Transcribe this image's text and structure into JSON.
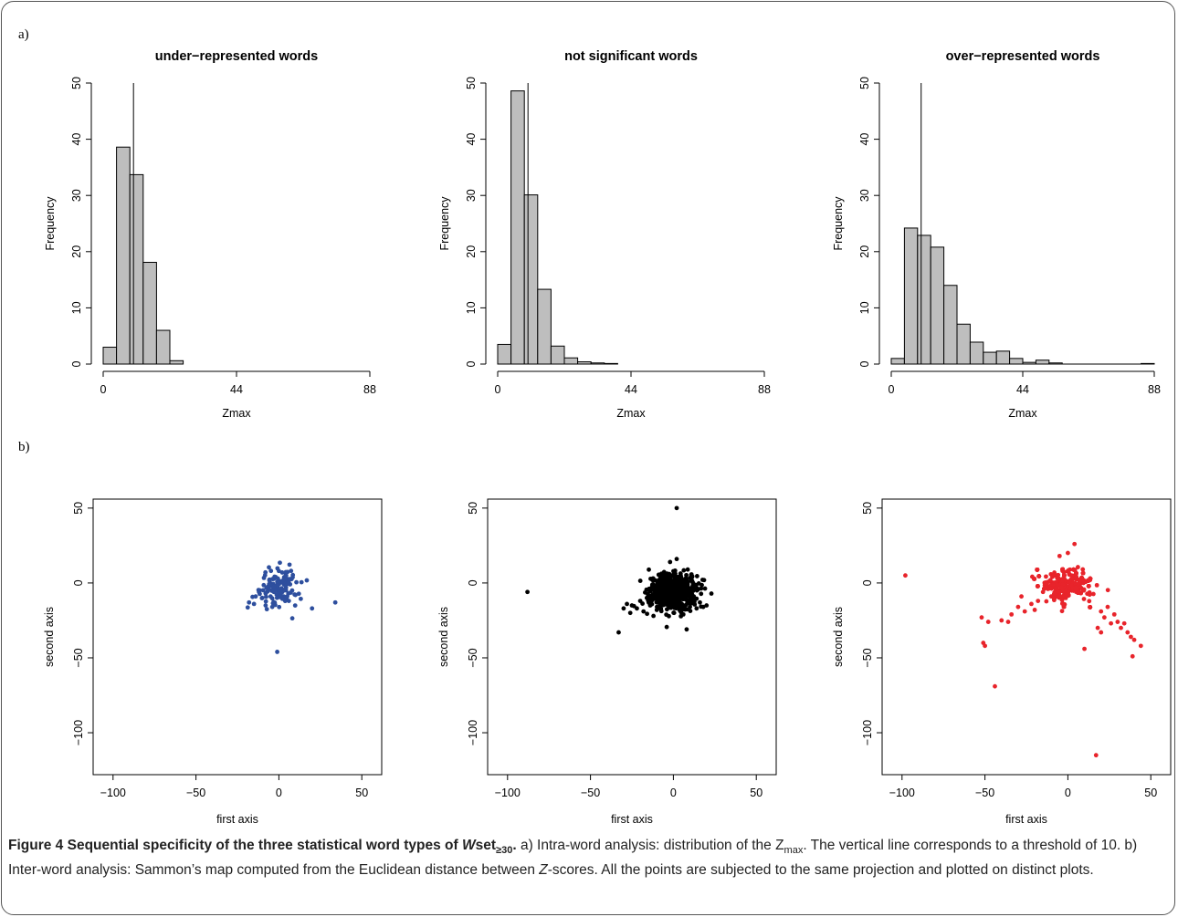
{
  "panel_labels": {
    "a": "a)",
    "b": "b)"
  },
  "caption": {
    "fig_label": "Figure 4",
    "title_pre": "Sequential specificity of the three statistical word types of",
    "title_W": "W",
    "title_set": "set",
    "title_sub": "≥30",
    "title_dot": ".",
    "text_a_pre": " a) Intra-word analysis: distribution of the Z",
    "text_a_sub": "max",
    "text_a_post": ". The vertical line corresponds to a threshold of 10. b) Inter-word analysis: Sammon’s map computed from the Euclidean distance between ",
    "text_z": "Z",
    "text_end": "-scores. All the points are subjected to the same projection and plotted on distinct plots."
  },
  "chart_data": [
    {
      "type": "bar",
      "title": "under−represented words",
      "xlabel": "Zmax",
      "ylabel": "Frequency",
      "xlim": [
        0,
        88
      ],
      "ylim": [
        0,
        50
      ],
      "xticks": [
        "0",
        "44",
        "88"
      ],
      "yticks": [
        "0",
        "10",
        "20",
        "30",
        "40",
        "50"
      ],
      "bin_width": 4.4,
      "values": [
        3.0,
        38.6,
        33.7,
        18.1,
        6.0,
        0.6
      ],
      "threshold": 10
    },
    {
      "type": "bar",
      "title": "not significant words",
      "xlabel": "Zmax",
      "ylabel": "Frequency",
      "xlim": [
        0,
        88
      ],
      "ylim": [
        0,
        50
      ],
      "xticks": [
        "0",
        "44",
        "88"
      ],
      "yticks": [
        "0",
        "10",
        "20",
        "30",
        "40",
        "50"
      ],
      "bin_width": 4.4,
      "values": [
        3.5,
        48.6,
        30.1,
        13.3,
        3.2,
        1.1,
        0.4,
        0.2,
        0.1
      ],
      "threshold": 10
    },
    {
      "type": "bar",
      "title": "over−represented words",
      "xlabel": "Zmax",
      "ylabel": "Frequency",
      "xlim": [
        0,
        88
      ],
      "ylim": [
        0,
        50
      ],
      "xticks": [
        "0",
        "44",
        "88"
      ],
      "yticks": [
        "0",
        "10",
        "20",
        "30",
        "40",
        "50"
      ],
      "bin_width": 4.4,
      "values": [
        1.0,
        24.2,
        22.9,
        20.8,
        14.0,
        7.1,
        3.9,
        2.1,
        2.3,
        1.0,
        0.3,
        0.7,
        0.2,
        0,
        0,
        0,
        0,
        0,
        0,
        0.1
      ],
      "threshold": 10
    },
    {
      "type": "scatter",
      "color": "#2e4f9e",
      "xlabel": "first axis",
      "ylabel": "second axis",
      "xlim": [
        -100,
        50
      ],
      "ylim": [
        -120,
        50
      ],
      "xticks": [
        "−100",
        "−50",
        "0",
        "50"
      ],
      "yticks": [
        "−100",
        "−50",
        "0",
        "50"
      ],
      "cluster": {
        "n": 110,
        "cx": 0,
        "cy": -2,
        "spread_x": 6,
        "spread_y": 6
      },
      "points": [
        [
          -18,
          -13
        ],
        [
          -15,
          -14
        ],
        [
          -14,
          -9
        ],
        [
          -12,
          -6
        ],
        [
          -10,
          -10
        ],
        [
          -8,
          -7
        ],
        [
          -8,
          -15
        ],
        [
          -6,
          -4
        ],
        [
          -5,
          -9
        ],
        [
          -4,
          -16
        ],
        [
          -3,
          -6
        ],
        [
          -2,
          4
        ],
        [
          0,
          8
        ],
        [
          2,
          7
        ],
        [
          5,
          -9
        ],
        [
          6,
          -12
        ],
        [
          8,
          -5
        ],
        [
          10,
          -8
        ],
        [
          20,
          -17
        ],
        [
          34,
          -13
        ],
        [
          -1,
          -46
        ]
      ]
    },
    {
      "type": "scatter",
      "color": "#000000",
      "xlabel": "first axis",
      "ylabel": "second axis",
      "xlim": [
        -100,
        50
      ],
      "ylim": [
        -120,
        50
      ],
      "xticks": [
        "−100",
        "−50",
        "0",
        "50"
      ],
      "yticks": [
        "−100",
        "−50",
        "0",
        "50"
      ],
      "cluster": {
        "n": 700,
        "cx": 0,
        "cy": -4,
        "spread_x": 7,
        "spread_y": 6
      },
      "points": [
        [
          -88,
          -6
        ],
        [
          2,
          50
        ],
        [
          -33,
          -33
        ],
        [
          -30,
          -17
        ],
        [
          -28,
          -14
        ],
        [
          -26,
          -20
        ],
        [
          -25,
          -15
        ],
        [
          -22,
          -17
        ],
        [
          -20,
          -12
        ],
        [
          -18,
          -19
        ],
        [
          -16,
          -10
        ],
        [
          -14,
          -15
        ],
        [
          -12,
          -22
        ],
        [
          -10,
          -18
        ],
        [
          -8,
          -17
        ],
        [
          6,
          -21
        ],
        [
          8,
          -31
        ],
        [
          10,
          -16
        ],
        [
          12,
          -12
        ],
        [
          14,
          -17
        ],
        [
          16,
          -13
        ],
        [
          18,
          -16
        ],
        [
          20,
          -15
        ],
        [
          2,
          16
        ],
        [
          -2,
          14
        ]
      ]
    },
    {
      "type": "scatter",
      "color": "#e8242b",
      "xlabel": "first axis",
      "ylabel": "second axis",
      "xlim": [
        -100,
        50
      ],
      "ylim": [
        -120,
        50
      ],
      "xticks": [
        "−100",
        "−50",
        "0",
        "50"
      ],
      "yticks": [
        "−100",
        "−50",
        "0",
        "50"
      ],
      "cluster": {
        "n": 1100,
        "cx": 0,
        "cy": 0,
        "spread_x": 8,
        "spread_y": 6
      },
      "points": [
        [
          -98,
          5
        ],
        [
          -52,
          -23
        ],
        [
          -51,
          -40
        ],
        [
          -50,
          -42
        ],
        [
          -48,
          -26
        ],
        [
          -44,
          -69
        ],
        [
          -40,
          -25
        ],
        [
          -36,
          -26
        ],
        [
          -34,
          -21
        ],
        [
          -30,
          -16
        ],
        [
          -28,
          -9
        ],
        [
          -26,
          -19
        ],
        [
          -22,
          -14
        ],
        [
          -20,
          -18
        ],
        [
          -18,
          -12
        ],
        [
          -15,
          -6
        ],
        [
          -12,
          -4
        ],
        [
          -10,
          -9
        ],
        [
          20,
          -19
        ],
        [
          22,
          -23
        ],
        [
          24,
          -16
        ],
        [
          26,
          -27
        ],
        [
          28,
          -21
        ],
        [
          30,
          -26
        ],
        [
          32,
          -30
        ],
        [
          34,
          -27
        ],
        [
          36,
          -33
        ],
        [
          38,
          -36
        ],
        [
          40,
          -38
        ],
        [
          39,
          -49
        ],
        [
          44,
          -42
        ],
        [
          18,
          -30
        ],
        [
          20,
          -33
        ],
        [
          10,
          -44
        ],
        [
          17,
          -115
        ],
        [
          4,
          26
        ],
        [
          0,
          20
        ],
        [
          -5,
          18
        ]
      ]
    }
  ]
}
